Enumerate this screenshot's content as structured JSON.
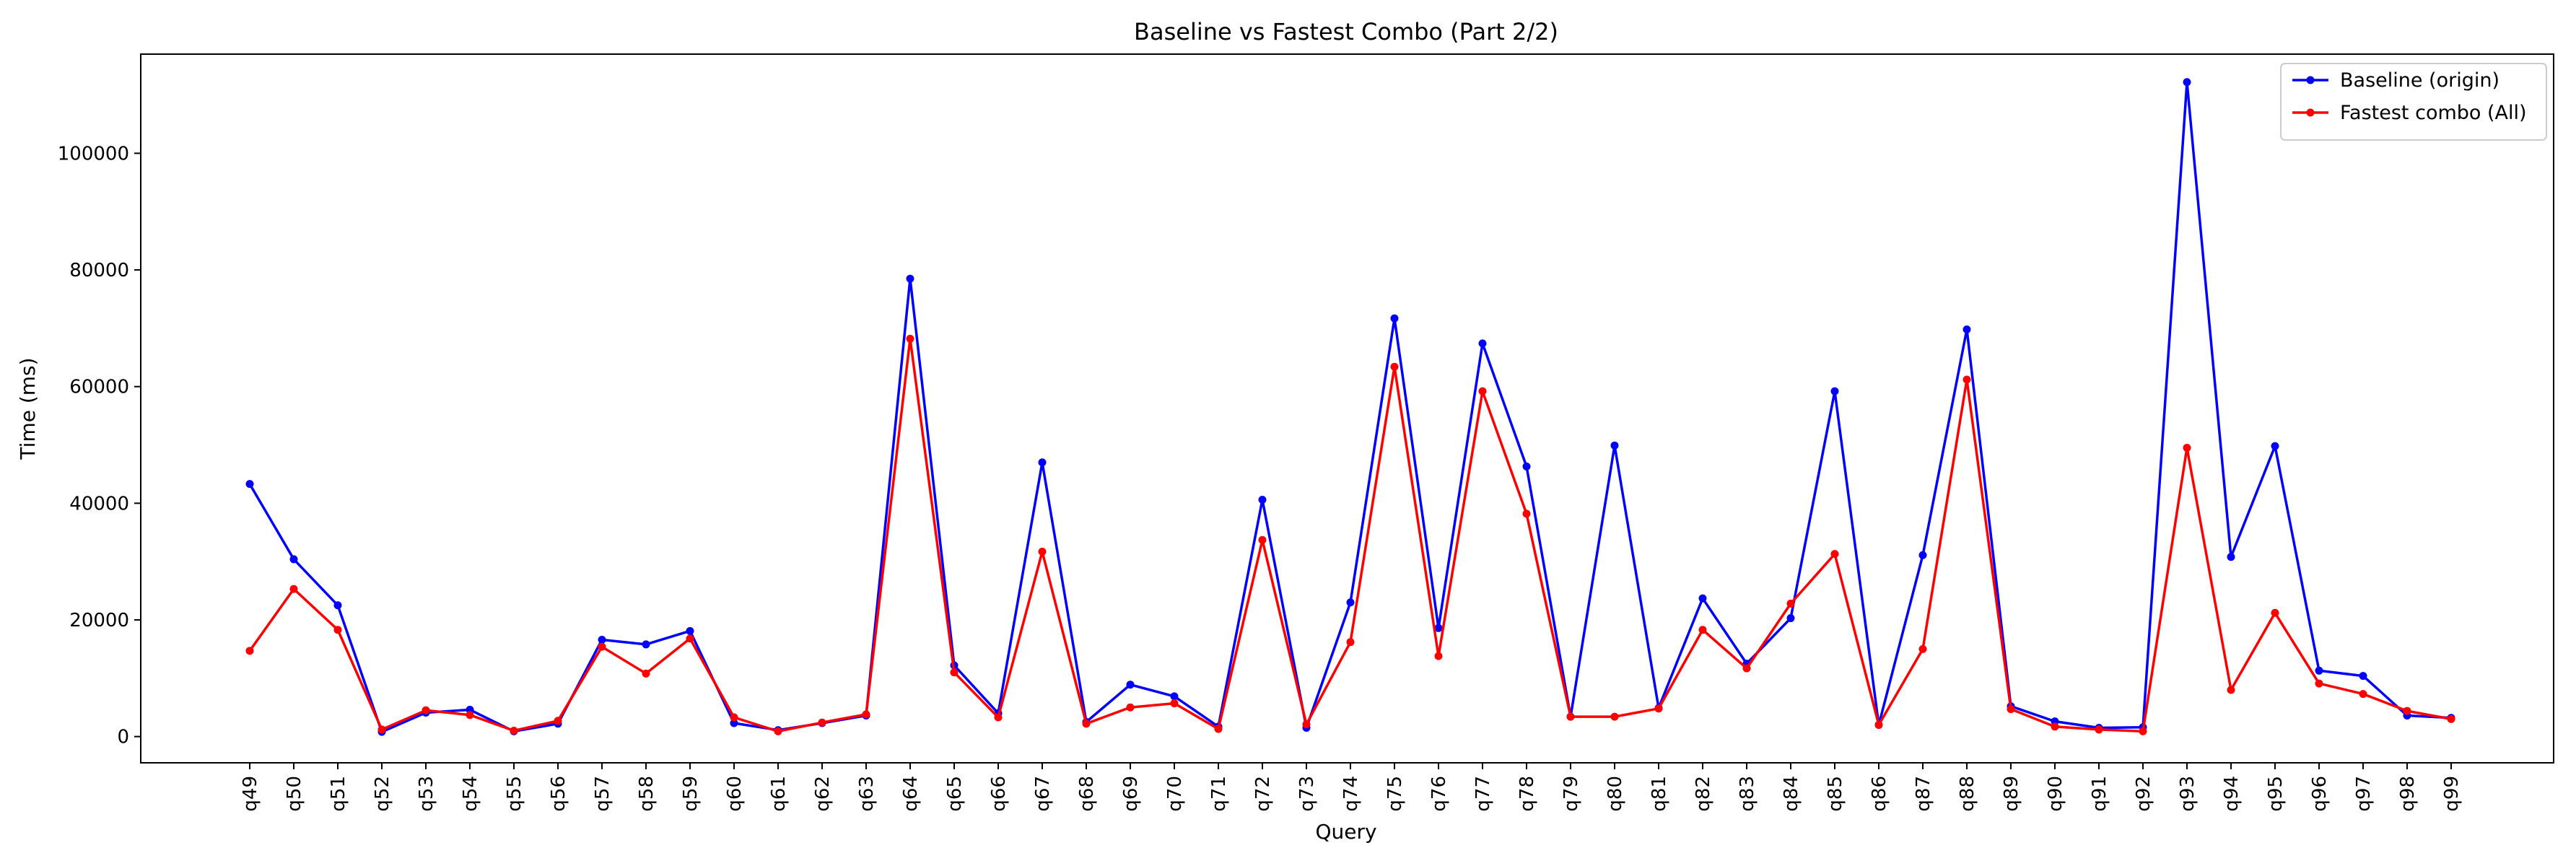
{
  "chart_data": {
    "type": "line",
    "title": "Baseline vs Fastest Combo (Part 2/2)",
    "xlabel": "Query",
    "ylabel": "Time (ms)",
    "ylim": [
      -4500,
      117000
    ],
    "yticks": [
      0,
      20000,
      40000,
      60000,
      80000,
      100000
    ],
    "grid": false,
    "legend_position": "top-right",
    "categories": [
      "q49",
      "q50",
      "q51",
      "q52",
      "q53",
      "q54",
      "q55",
      "q56",
      "q57",
      "q58",
      "q59",
      "q60",
      "q61",
      "q62",
      "q63",
      "q64",
      "q65",
      "q66",
      "q67",
      "q68",
      "q69",
      "q70",
      "q71",
      "q72",
      "q73",
      "q74",
      "q75",
      "q76",
      "q77",
      "q78",
      "q79",
      "q80",
      "q81",
      "q82",
      "q83",
      "q84",
      "q85",
      "q86",
      "q87",
      "q88",
      "q89",
      "q90",
      "q91",
      "q92",
      "q93",
      "q94",
      "q95",
      "q96",
      "q97",
      "q98",
      "q99"
    ],
    "series": [
      {
        "name": "Baseline (origin)",
        "color": "#0000ff",
        "values": [
          43300,
          30400,
          22500,
          800,
          4100,
          4600,
          900,
          2200,
          16600,
          15800,
          18100,
          2300,
          1100,
          2300,
          3600,
          78500,
          12200,
          4000,
          47000,
          2500,
          8900,
          6900,
          1700,
          40600,
          1500,
          23000,
          71700,
          18600,
          67400,
          46300,
          3400,
          49900,
          4900,
          23700,
          12500,
          20300,
          59200,
          2000,
          31100,
          69800,
          5200,
          2600,
          1500,
          1600,
          112200,
          30800,
          49800,
          11300,
          10400,
          3600,
          3200
        ]
      },
      {
        "name": "Fastest combo (All)",
        "color": "#ff0000",
        "values": [
          14700,
          25300,
          18300,
          1200,
          4500,
          3700,
          1000,
          2700,
          15400,
          10800,
          16800,
          3300,
          900,
          2400,
          3800,
          68200,
          11000,
          3300,
          31700,
          2200,
          5000,
          5700,
          1300,
          33700,
          2100,
          16200,
          63400,
          13800,
          59200,
          38200,
          3400,
          3400,
          4800,
          18300,
          11700,
          22800,
          31300,
          2000,
          15000,
          61200,
          4700,
          1700,
          1200,
          900,
          49500,
          8000,
          21200,
          9100,
          7300,
          4400,
          3000
        ]
      }
    ]
  }
}
